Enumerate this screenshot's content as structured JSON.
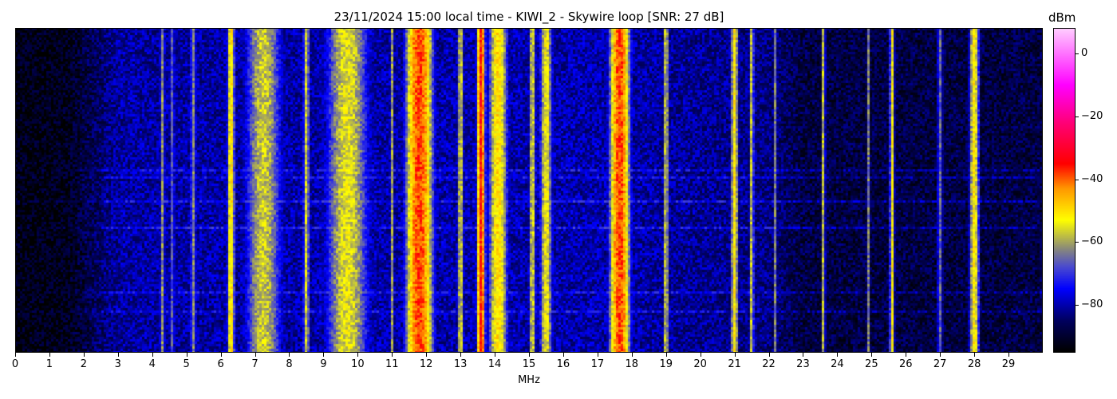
{
  "chart_data": {
    "type": "heatmap",
    "title": "23/11/2024 15:00 local time - KIWI_2 - Skywire loop [SNR: 27 dB]",
    "xlabel": "MHz",
    "xlim": [
      0,
      30
    ],
    "xticks": [
      "0",
      "1",
      "2",
      "3",
      "4",
      "5",
      "6",
      "7",
      "8",
      "9",
      "10",
      "11",
      "12",
      "13",
      "14",
      "15",
      "16",
      "17",
      "18",
      "19",
      "20",
      "21",
      "22",
      "23",
      "24",
      "25",
      "26",
      "27",
      "28",
      "29"
    ],
    "colorbar": {
      "label": "dBm",
      "range": [
        -95,
        8
      ],
      "ticks": [
        "0",
        "−20",
        "−40",
        "−60",
        "−80"
      ],
      "tick_values": [
        0,
        -20,
        -40,
        -60,
        -80
      ],
      "colormap": [
        [
          -95,
          "#000000"
        ],
        [
          -85,
          "#000060"
        ],
        [
          -75,
          "#0000ff"
        ],
        [
          -68,
          "#4a4ad0"
        ],
        [
          -62,
          "#8c8c78"
        ],
        [
          -53,
          "#ffff00"
        ],
        [
          -43,
          "#ff9900"
        ],
        [
          -35,
          "#ff0000"
        ],
        [
          -22,
          "#ff0077"
        ],
        [
          -10,
          "#ff00ff"
        ],
        [
          8,
          "#ffccff"
        ]
      ]
    },
    "noise_floor_dbm": [
      [
        0,
        -93
      ],
      [
        1.5,
        -92
      ],
      [
        3,
        -81
      ],
      [
        17,
        -80
      ],
      [
        22,
        -83
      ],
      [
        23,
        -88
      ],
      [
        30,
        -88
      ]
    ],
    "signals": [
      {
        "freq_mhz": 4.3,
        "width_mhz": 0.04,
        "level_dbm": -62
      },
      {
        "freq_mhz": 4.6,
        "width_mhz": 0.03,
        "level_dbm": -63
      },
      {
        "freq_mhz": 5.2,
        "width_mhz": 0.05,
        "level_dbm": -63
      },
      {
        "freq_mhz": 6.3,
        "width_mhz": 0.06,
        "level_dbm": -50
      },
      {
        "freq_mhz": 7.25,
        "width_mhz": 0.3,
        "level_dbm": -57
      },
      {
        "freq_mhz": 8.5,
        "width_mhz": 0.05,
        "level_dbm": -56
      },
      {
        "freq_mhz": 9.7,
        "width_mhz": 0.35,
        "level_dbm": -55
      },
      {
        "freq_mhz": 11.0,
        "width_mhz": 0.03,
        "level_dbm": -60
      },
      {
        "freq_mhz": 11.8,
        "width_mhz": 0.2,
        "level_dbm": -38
      },
      {
        "freq_mhz": 13.0,
        "width_mhz": 0.05,
        "level_dbm": -56
      },
      {
        "freq_mhz": 13.6,
        "width_mhz": 0.06,
        "level_dbm": -35
      },
      {
        "freq_mhz": 14.1,
        "width_mhz": 0.15,
        "level_dbm": -50
      },
      {
        "freq_mhz": 15.1,
        "width_mhz": 0.05,
        "level_dbm": -55
      },
      {
        "freq_mhz": 15.5,
        "width_mhz": 0.1,
        "level_dbm": -54
      },
      {
        "freq_mhz": 17.65,
        "width_mhz": 0.15,
        "level_dbm": -38
      },
      {
        "freq_mhz": 19.0,
        "width_mhz": 0.04,
        "level_dbm": -55
      },
      {
        "freq_mhz": 21.0,
        "width_mhz": 0.06,
        "level_dbm": -52
      },
      {
        "freq_mhz": 21.5,
        "width_mhz": 0.04,
        "level_dbm": -57
      },
      {
        "freq_mhz": 22.2,
        "width_mhz": 0.03,
        "level_dbm": -62
      },
      {
        "freq_mhz": 23.6,
        "width_mhz": 0.03,
        "level_dbm": -56
      },
      {
        "freq_mhz": 24.9,
        "width_mhz": 0.03,
        "level_dbm": -63
      },
      {
        "freq_mhz": 25.6,
        "width_mhz": 0.04,
        "level_dbm": -53
      },
      {
        "freq_mhz": 27.0,
        "width_mhz": 0.05,
        "level_dbm": -66
      },
      {
        "freq_mhz": 28.0,
        "width_mhz": 0.08,
        "level_dbm": -52
      }
    ]
  }
}
